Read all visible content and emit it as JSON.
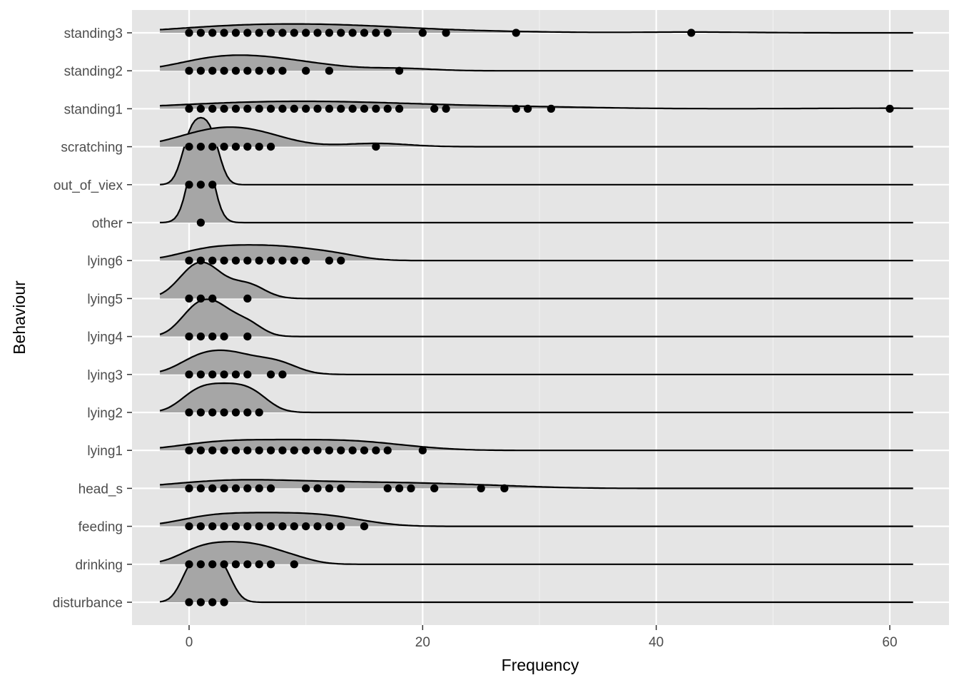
{
  "colors": {
    "panel": "#e5e5e5",
    "grid_major": "#ffffff",
    "grid_minor": "#f0f0f0",
    "ridge_fill": "#a6a6a6",
    "ridge_line": "#000000",
    "point": "#000000",
    "tick_text": "#4d4d4d"
  },
  "chart_data": {
    "type": "ridgeline",
    "xlabel": "Frequency",
    "ylabel": "Behaviour",
    "xlim": [
      -5,
      64
    ],
    "x_ticks": [
      0,
      20,
      40,
      60
    ],
    "x_tick_labels": [
      "0",
      "20",
      "40",
      "60"
    ],
    "grid": true,
    "legend": "none",
    "series": [
      {
        "name": "disturbance",
        "points": [
          0,
          1,
          2,
          3
        ]
      },
      {
        "name": "drinking",
        "points": [
          0,
          1,
          2,
          3,
          4,
          5,
          6,
          7,
          9
        ]
      },
      {
        "name": "feeding",
        "points": [
          0,
          1,
          2,
          3,
          4,
          5,
          6,
          7,
          8,
          9,
          10,
          11,
          12,
          13,
          15
        ]
      },
      {
        "name": "head_s",
        "points": [
          0,
          1,
          2,
          3,
          4,
          5,
          6,
          7,
          10,
          11,
          12,
          13,
          17,
          18,
          19,
          21,
          25,
          27
        ]
      },
      {
        "name": "lying1",
        "points": [
          0,
          1,
          2,
          3,
          4,
          5,
          6,
          7,
          8,
          9,
          10,
          11,
          12,
          13,
          14,
          15,
          16,
          17,
          20
        ]
      },
      {
        "name": "lying2",
        "points": [
          0,
          1,
          2,
          3,
          4,
          5,
          6
        ]
      },
      {
        "name": "lying3",
        "points": [
          0,
          1,
          2,
          3,
          4,
          5,
          7,
          8
        ]
      },
      {
        "name": "lying4",
        "points": [
          0,
          1,
          2,
          3,
          5
        ]
      },
      {
        "name": "lying5",
        "points": [
          0,
          1,
          2,
          5
        ]
      },
      {
        "name": "lying6",
        "points": [
          0,
          1,
          2,
          3,
          4,
          5,
          6,
          7,
          8,
          9,
          10,
          12,
          13
        ]
      },
      {
        "name": "other",
        "points": [
          1
        ]
      },
      {
        "name": "out_of_viex",
        "points": [
          0,
          1,
          2
        ]
      },
      {
        "name": "scratching",
        "points": [
          0,
          1,
          2,
          3,
          4,
          5,
          6,
          7,
          16
        ]
      },
      {
        "name": "standing1",
        "points": [
          0,
          1,
          2,
          3,
          4,
          5,
          6,
          7,
          8,
          9,
          10,
          11,
          12,
          13,
          14,
          15,
          16,
          17,
          18,
          21,
          22,
          28,
          29,
          31,
          60
        ]
      },
      {
        "name": "standing2",
        "points": [
          0,
          1,
          2,
          3,
          4,
          5,
          6,
          7,
          8,
          10,
          12,
          18
        ]
      },
      {
        "name": "standing3",
        "points": [
          0,
          1,
          2,
          3,
          4,
          5,
          6,
          7,
          8,
          9,
          10,
          11,
          12,
          13,
          14,
          15,
          16,
          17,
          20,
          22,
          28,
          43
        ]
      }
    ]
  }
}
